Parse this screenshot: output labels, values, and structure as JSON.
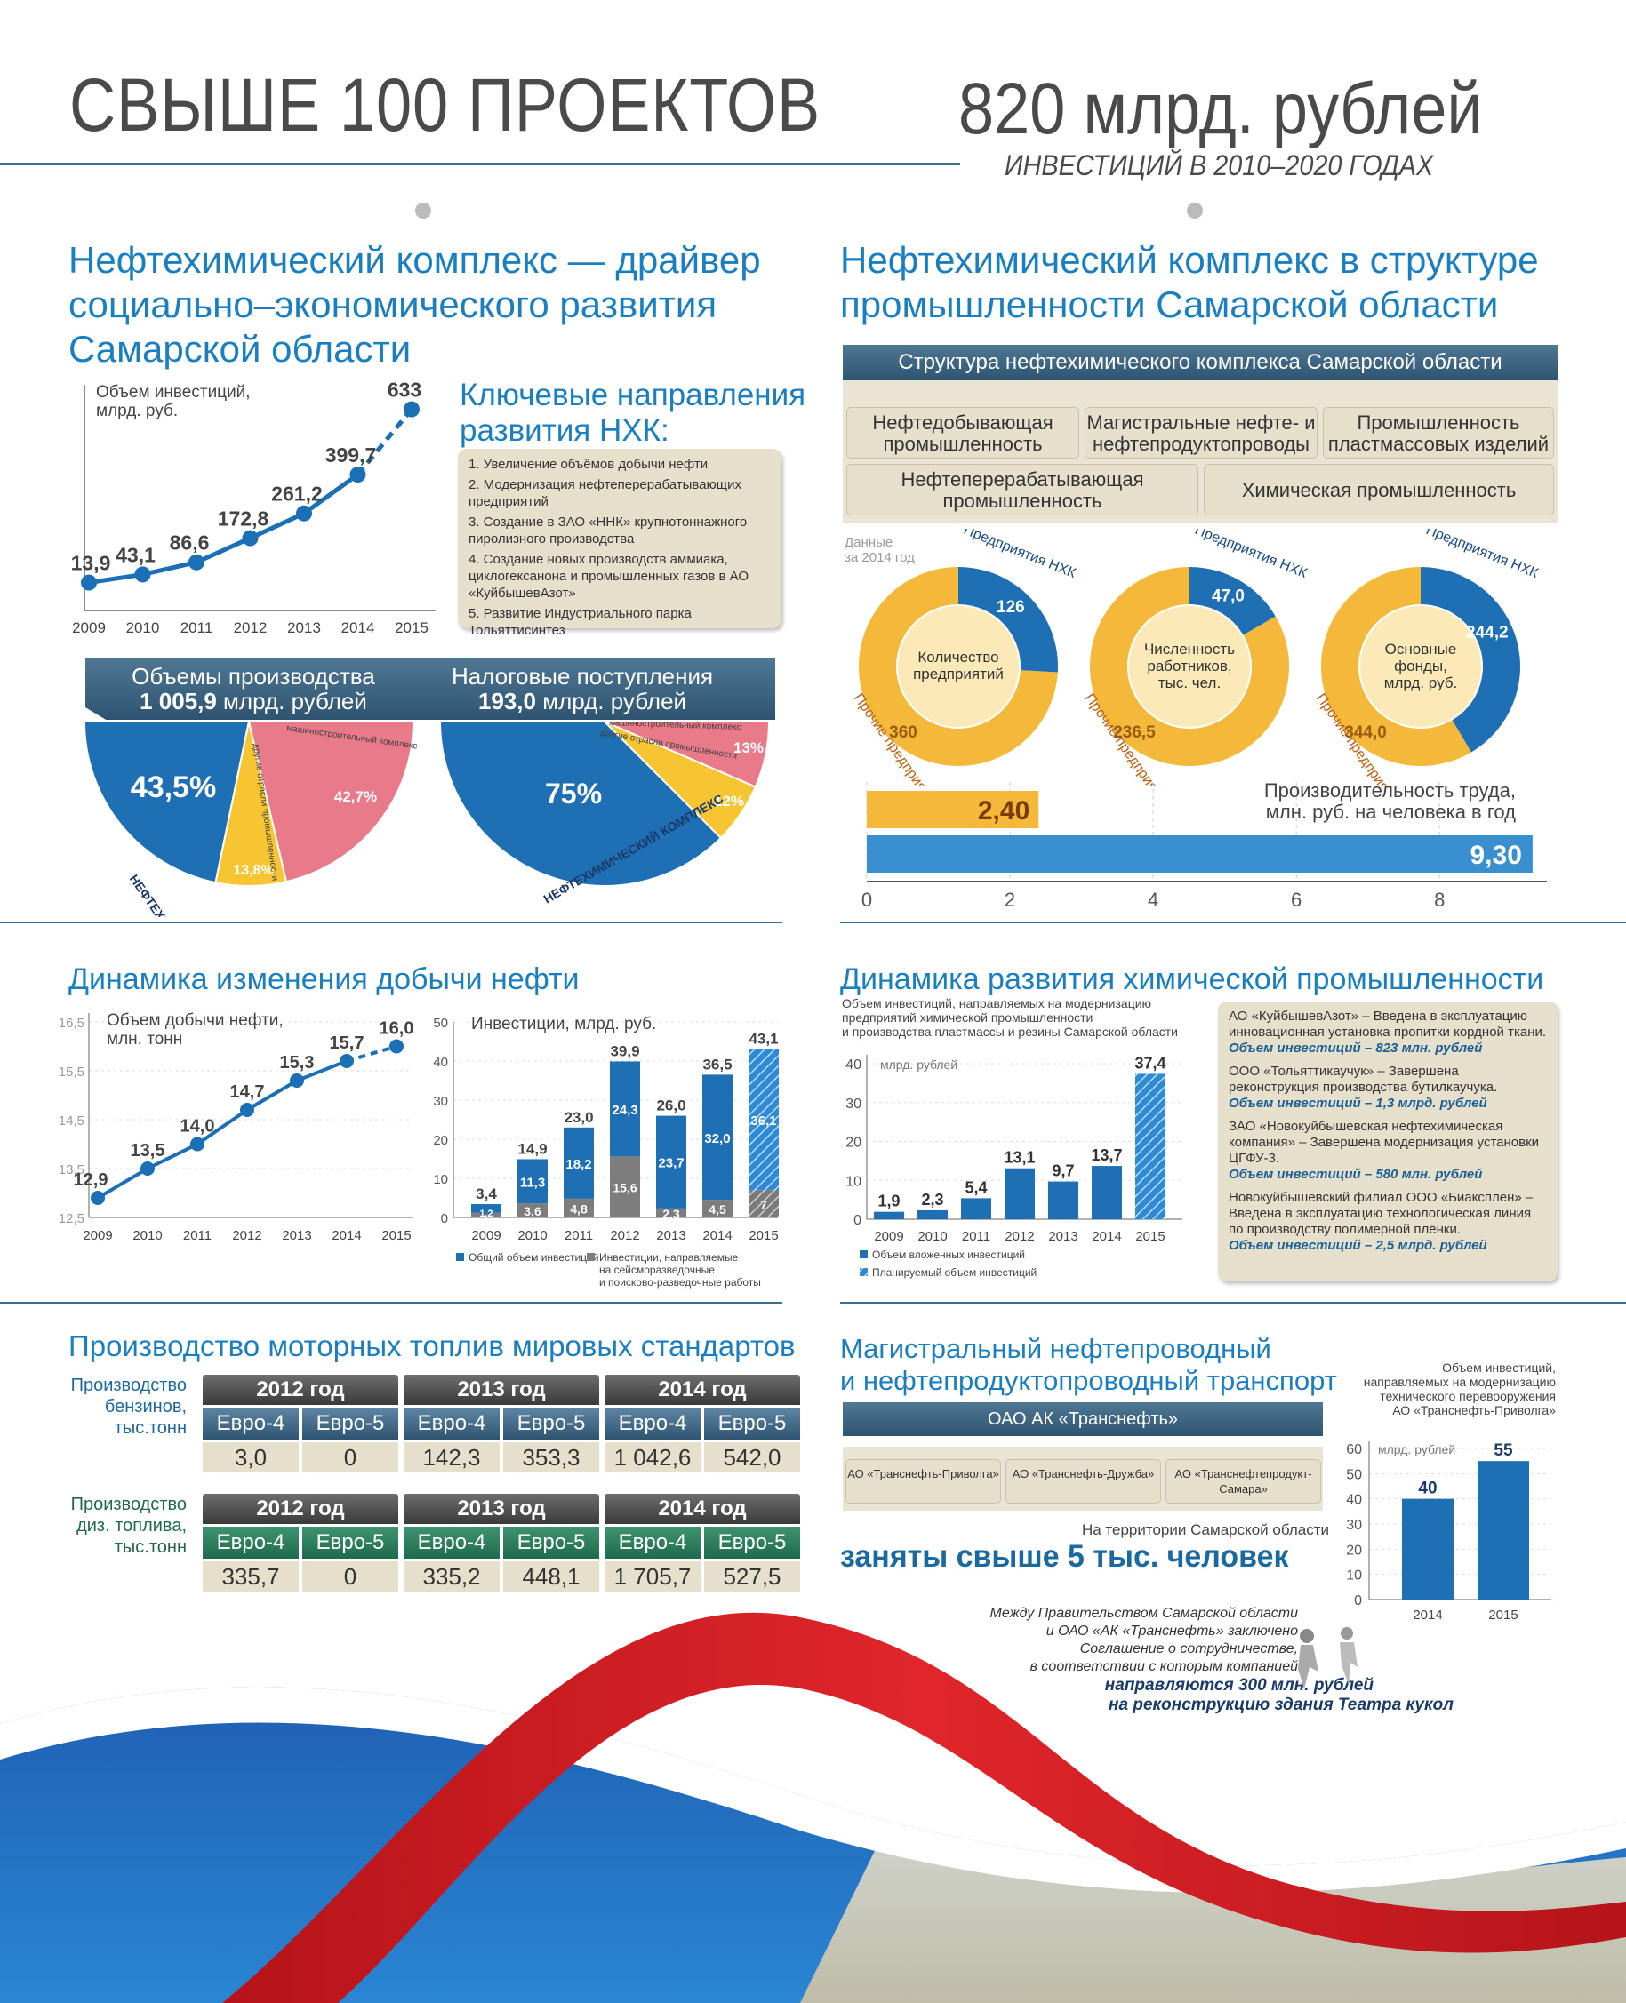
{
  "header": {
    "left_title": "СВЫШЕ 100 ПРОЕКТОВ",
    "right_title": "820 млрд. рублей",
    "right_subtitle": "ИНВЕСТИЦИЙ В 2010–2020 ГОДАХ"
  },
  "s1": {
    "title_line1": "Нефтехимический комплекс — драйвер",
    "title_line2": "социально–экономического развития",
    "title_line3": "Самарской области",
    "key_title_line1": "Ключевые направления",
    "key_title_line2": "развития НХК:",
    "key_items": [
      "1. Увеличение объёмов добычи нефти",
      "2. Модернизация нефтеперерабатывающих предприятий",
      "3. Создание в ЗАО «ННК» крупнотоннажного пиролизного производства",
      "4. Создание новых производств аммиака, циклогексанона и промышленных газов в АО «КуйбышевАзот»",
      "5. Развитие Индустриального парка Тольяттисинтез"
    ],
    "prod_title": "Объемы производства",
    "prod_value_bold": "1 005,9",
    "prod_value_rest": " млрд. рублей",
    "tax_title": "Налоговые поступления",
    "tax_value_bold": "193,0",
    "tax_value_rest": " млрд. рублей"
  },
  "s2": {
    "title_line1": "Нефтехимический комплекс в структуре",
    "title_line2": "промышленности Самарской области",
    "struct_title": "Структура нефтехимического комплекса Самарской области",
    "boxes": [
      "Нефтедобывающая промышленность",
      "Магистральные нефте- и нефтепродуктопроводы",
      "Промышленность пластмассовых изделий",
      "Нефтеперерабатывающая промышленность",
      "Химическая промышленность"
    ],
    "data_note_line1": "Данные",
    "data_note_line2": "за 2014 год"
  },
  "s3": {
    "title": "Динамика изменения добычи нефти"
  },
  "s4": {
    "title": "Динамика развития химической промышленности",
    "companies": [
      {
        "text": "АО «КуйбышевАзот» – Введена в эксплуатацию инновационная установка пропитки кордной ткани.",
        "inv": "Объем инвестиций – 823 млн. рублей"
      },
      {
        "text": "ООО «Тольяттикаучук» – Завершена реконструкция производства бутилкаучука.",
        "inv": "Объем инвестиций – 1,3 млрд. рублей"
      },
      {
        "text": "ЗАО «Новокуйбышевская нефтехимическая компания» – Завершена модернизация установки ЦГФУ-3.",
        "inv": "Объем инвестиций – 580 млн. рублей"
      },
      {
        "text": "Новокуйбышевский филиал ООО «Биаксплен» – Введена в эксплуатацию технологическая линия по производству полимерной плёнки.",
        "inv": "Объем инвестиций – 2,5 млрд. рублей"
      }
    ]
  },
  "s5": {
    "title": "Производство моторных топлив мировых стандартов",
    "row1_label": "Производство бензинов, тыс.тонн",
    "row2_label": "Производство диз. топлива, тыс.тонн",
    "years": [
      "2012 год",
      "2013 год",
      "2014 год"
    ],
    "euro": [
      "Евро-4",
      "Евро-5"
    ],
    "gasoline": [
      "3,0",
      "0",
      "142,3",
      "353,3",
      "1 042,6",
      "542,0"
    ],
    "diesel": [
      "335,7",
      "0",
      "335,2",
      "448,1",
      "1 705,7",
      "527,5"
    ]
  },
  "s6": {
    "title_line1": "Магистральный нефтепроводный",
    "title_line2": "и нефтепродуктопроводный транспорт",
    "parent": "ОАО АК «Транснефть»",
    "children": [
      "АО «Транснефть-Приволга»",
      "АО «Транснефть-Дружба»",
      "АО «Транснефтепродукт-Самара»"
    ],
    "employ_note": "На территории Самарской области",
    "employ_big": "заняты свыше 5 тыс. человек",
    "agreement_lines": [
      "Между Правительством Самарской области",
      "и ОАО «АК «Транснефть» заключено",
      "Соглашение о сотрудничестве,",
      "в соответствии с которым компанией"
    ],
    "agreement_bold1": "направляются 300 млн. рублей",
    "agreement_bold2": "на реконструкцию здания Театра кукол"
  },
  "chart_data": [
    {
      "type": "line",
      "ylabel": "Объем инвестиций, млрд. руб.",
      "x": [
        "2009",
        "2010",
        "2011",
        "2012",
        "2013",
        "2014",
        "2015"
      ],
      "values": [
        13.9,
        43.1,
        86.6,
        172.8,
        261.2,
        399.7,
        633
      ],
      "labels": [
        "13,9",
        "43,1",
        "86,6",
        "172,8",
        "261,2",
        "399,7",
        "633"
      ],
      "color": "#1a6fb5"
    },
    {
      "type": "pie",
      "slices": [
        {
          "name": "НЕФТЕХИМИЧЕСКИЙ КОМПЛЕКС",
          "value": 43.5,
          "label": "43,5%"
        },
        {
          "name": "другие отрасли промышленности",
          "value": 13.8,
          "label": "13,8%"
        },
        {
          "name": "машиностроительный комплекс",
          "value": 42.7,
          "label": "42,7%"
        }
      ]
    },
    {
      "type": "pie",
      "slices": [
        {
          "name": "НЕФТЕХИМИЧЕСКИЙ КОМПЛЕКС",
          "value": 75,
          "label": "75%"
        },
        {
          "name": "другие отрасли промышленности",
          "value": 12,
          "label": "12%"
        },
        {
          "name": "машиностроительный комплекс",
          "value": 13,
          "label": "13%"
        }
      ]
    },
    {
      "type": "pie",
      "center": "Количество предприятий",
      "nhk_label": "Предприятия НХК",
      "other_label": "Прочие предприятия",
      "nhk": 126,
      "other": 360,
      "nhk_text": "126",
      "other_text": "360"
    },
    {
      "type": "pie",
      "center": "Численность работников, тыс. чел.",
      "nhk_label": "Предприятия НХК",
      "other_label": "Прочие предприятия",
      "nhk": 47.0,
      "other": 236.5,
      "nhk_text": "47,0",
      "other_text": "236,5"
    },
    {
      "type": "pie",
      "center": "Основные фонды, млрд. руб.",
      "nhk_label": "Предприятия НХК",
      "other_label": "Прочие предприятия",
      "nhk": 244.2,
      "other": 344.0,
      "nhk_text": "244,2",
      "other_text": "344,0"
    },
    {
      "type": "bar",
      "title": "Производительность труда, млн. руб. на человека в год",
      "values": [
        2.4,
        9.3
      ],
      "labels": [
        "2,40",
        "9,30"
      ],
      "xlim": [
        0,
        9.5
      ],
      "ticks": [
        "0",
        "2",
        "4",
        "6",
        "8"
      ]
    },
    {
      "type": "line",
      "ylabel": "Объем добычи нефти, млн. тонн",
      "x": [
        "2009",
        "2010",
        "2011",
        "2012",
        "2013",
        "2014",
        "2015"
      ],
      "values": [
        12.9,
        13.5,
        14.0,
        14.7,
        15.3,
        15.7,
        16.0
      ],
      "labels": [
        "12,9",
        "13,5",
        "14,0",
        "14,7",
        "15,3",
        "15,7",
        "16,0"
      ],
      "ylim": [
        12.5,
        16.5
      ],
      "yticks": [
        "12,5",
        "13,5",
        "14,5",
        "15,5",
        "16,5"
      ]
    },
    {
      "type": "bar",
      "ylabel": "Инвестиции, млрд. руб.",
      "categories": [
        "2009",
        "2010",
        "2011",
        "2012",
        "2013",
        "2014",
        "2015"
      ],
      "ylim": [
        0,
        50
      ],
      "yticks": [
        "0",
        "10",
        "20",
        "30",
        "40",
        "50"
      ],
      "totals": [
        3.4,
        14.9,
        23.0,
        39.9,
        26.0,
        36.5,
        43.1
      ],
      "totals_text": [
        "3,4",
        "14,9",
        "23,0",
        "39,9",
        "26,0",
        "36,5",
        "43,1"
      ],
      "series": [
        {
          "name": "Инвестиции, направляемые на сейсморазведочные и поисково-разведочные работы",
          "values": [
            1.2,
            3.6,
            4.8,
            15.6,
            2.3,
            4.5,
            7
          ],
          "labels": [
            "1,2",
            "3,6",
            "4,8",
            "15,6",
            "2,3",
            "4,5",
            "7"
          ]
        },
        {
          "name": "Общий объем инвестиций",
          "values": [
            2.2,
            11.3,
            18.2,
            24.3,
            23.7,
            32.0,
            36.1
          ],
          "labels": [
            "2,2",
            "11,3",
            "18,2",
            "24,3",
            "23,7",
            "32,0",
            "36,1"
          ]
        }
      ]
    },
    {
      "type": "bar",
      "ylabel": "Объем инвестиций, направляемых на модернизацию предприятий химической промышленности и производства пластмассы и резины Самарской области",
      "unit": "млрд. рублей",
      "categories": [
        "2009",
        "2010",
        "2011",
        "2012",
        "2013",
        "2014",
        "2015"
      ],
      "values": [
        1.9,
        2.3,
        5.4,
        13.1,
        9.7,
        13.7,
        37.4
      ],
      "labels": [
        "1,9",
        "2,3",
        "5,4",
        "13,1",
        "9,7",
        "13,7",
        "37,4"
      ],
      "ylim": [
        0,
        40
      ],
      "yticks": [
        "0",
        "10",
        "20",
        "30",
        "40"
      ],
      "legend": [
        "Объем вложенных инвестиций",
        "Планируемый объем инвестиций"
      ]
    },
    {
      "type": "bar",
      "title": "Объем инвестиций, направляемых на модернизацию технического перевооружения АО «Транснефть-Приволга»",
      "unit": "млрд. рублей",
      "categories": [
        "2014",
        "2015"
      ],
      "values": [
        40,
        55
      ],
      "labels": [
        "40",
        "55"
      ],
      "ylim": [
        0,
        60
      ],
      "yticks": [
        "0",
        "10",
        "20",
        "30",
        "40",
        "50",
        "60"
      ]
    }
  ]
}
